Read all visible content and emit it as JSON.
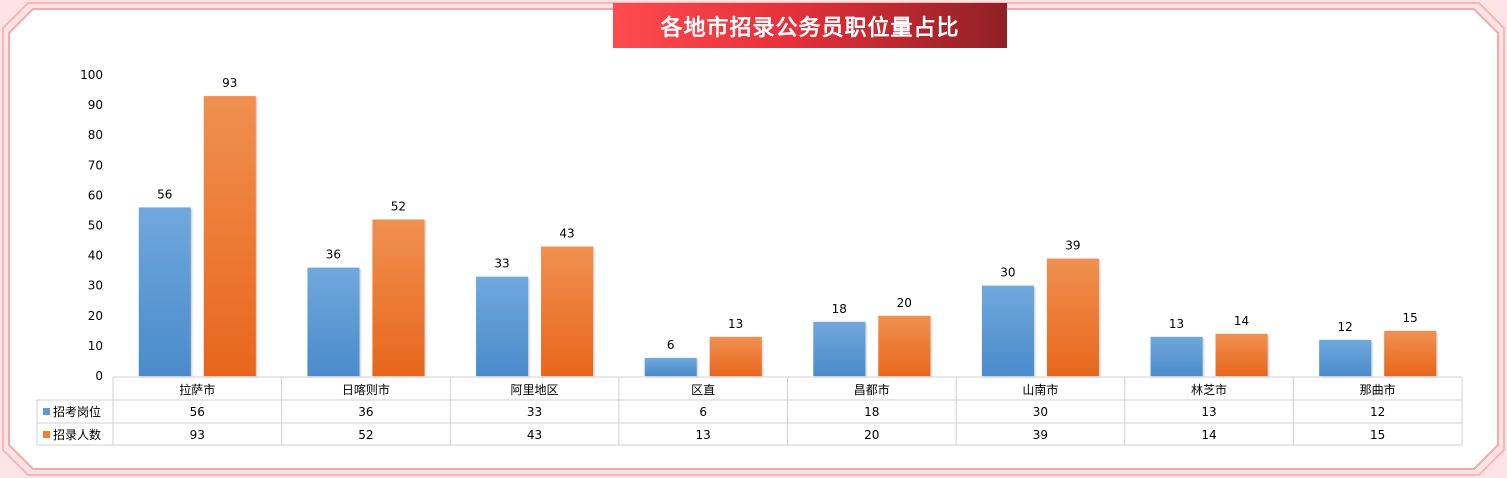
{
  "chart_data": {
    "type": "bar",
    "title": "各地市招录公务员职位量占比",
    "categories": [
      "拉萨市",
      "日喀则市",
      "阿里地区",
      "区直",
      "昌都市",
      "山南市",
      "林芝市",
      "那曲市"
    ],
    "series": [
      {
        "name": "招考岗位",
        "values": [
          56,
          36,
          33,
          6,
          18,
          30,
          13,
          12
        ],
        "color": "#5b9bd5"
      },
      {
        "name": "招录人数",
        "values": [
          93,
          52,
          43,
          13,
          20,
          39,
          14,
          15
        ],
        "color": "#ed7d31"
      }
    ],
    "ylim": [
      0,
      100
    ],
    "yticks": [
      0,
      10,
      20,
      30,
      40,
      50,
      60,
      70,
      80,
      90,
      100
    ],
    "data_table": true,
    "grid": false
  }
}
